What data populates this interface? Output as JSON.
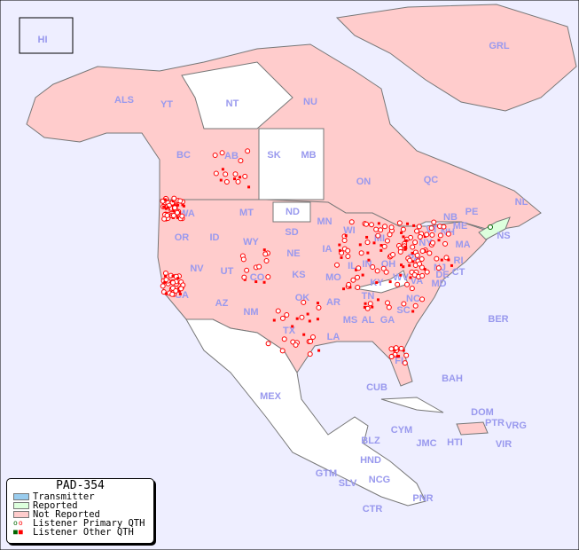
{
  "legend": {
    "title": "PAD-354",
    "items": [
      {
        "label": "Transmitter",
        "color": "#99ccee"
      },
      {
        "label": "Reported",
        "color": "#ddffdd"
      },
      {
        "label": "Not Reported",
        "color": "#ffcccc"
      },
      {
        "label": "Listener Primary QTH",
        "colors": [
          "#006600",
          "#ff0000"
        ]
      },
      {
        "label": "Listener Other QTH",
        "colors": [
          "#006600",
          "#ff0000"
        ]
      }
    ]
  },
  "colors": {
    "ocean": "#eeeeff",
    "not_reported": "#ffcccc",
    "reported": "#ddffdd",
    "no_data": "#ffffff",
    "marker": "#ff0000",
    "border": "#777777"
  },
  "labels": [
    "HI",
    "ALS",
    "YT",
    "NT",
    "NU",
    "GRL",
    "BC",
    "AB",
    "SK",
    "MB",
    "ON",
    "QC",
    "NL",
    "PE",
    "NB",
    "NS",
    "WA",
    "OR",
    "ID",
    "MT",
    "ND",
    "MN",
    "WI",
    "MI",
    "NY",
    "VT",
    "NH",
    "ME",
    "MA",
    "RI",
    "CT",
    "NJ",
    "PA",
    "OH",
    "IN",
    "IL",
    "IA",
    "SD",
    "WY",
    "NV",
    "CA",
    "UT",
    "CO",
    "NE",
    "KS",
    "MO",
    "KY",
    "WV",
    "VA",
    "DE",
    "MD",
    "AZ",
    "NM",
    "OK",
    "AR",
    "TN",
    "NC",
    "SC",
    "GA",
    "AL",
    "MS",
    "LA",
    "TX",
    "FL",
    "BER",
    "BAH",
    "CUB",
    "MEX",
    "DOM",
    "PTR",
    "VRG",
    "VIR",
    "CYM",
    "JMC",
    "HTI",
    "BLZ",
    "HND",
    "GTM",
    "SLV",
    "NCG",
    "CTR",
    "PNR"
  ]
}
